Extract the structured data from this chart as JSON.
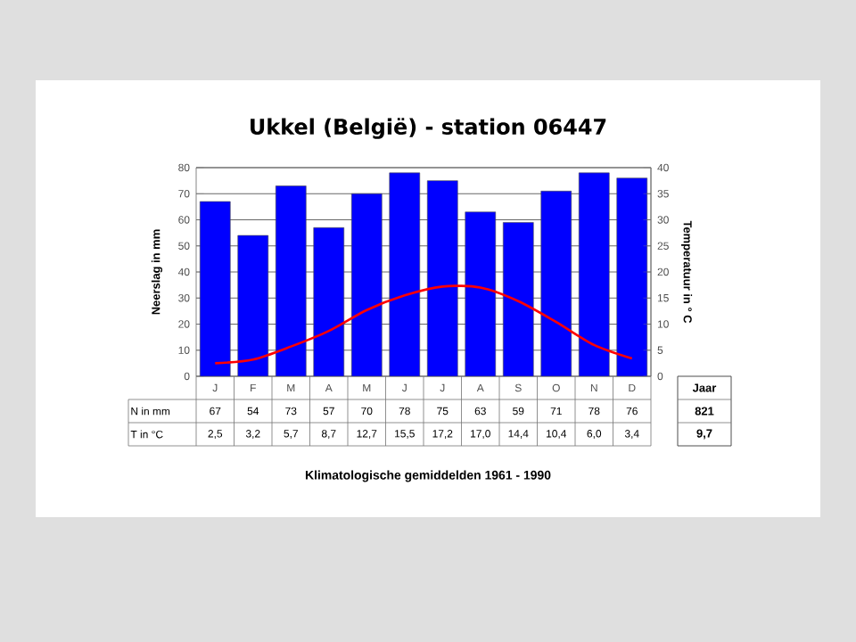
{
  "chart_data": {
    "type": "bar",
    "title": "Ukkel (België) - station 06447",
    "categories": [
      "J",
      "F",
      "M",
      "A",
      "M",
      "J",
      "J",
      "A",
      "S",
      "O",
      "N",
      "D"
    ],
    "series": [
      {
        "color": "#0000ff",
        "values": [
          67,
          54,
          73,
          57,
          70,
          78,
          75,
          63,
          59,
          71,
          78,
          76
        ],
        "value_labels": [
          "67",
          "54",
          "73",
          "57",
          "70",
          "78",
          "75",
          "63",
          "59",
          "71",
          "78",
          "76"
        ]
      },
      {
        "type": "line",
        "axis": "y2",
        "color": "#ff0000",
        "marker": "none",
        "line_style": "solid",
        "values": [
          2.5,
          3.2,
          5.7,
          8.7,
          12.7,
          15.5,
          17.2,
          17.0,
          14.4,
          10.4,
          6.0,
          3.4
        ],
        "value_labels": [
          "2,5",
          "3,2",
          "5,7",
          "8,7",
          "12,7",
          "15,5",
          "17,2",
          "17,0",
          "14,4",
          "10,4",
          "6,0",
          "3,4"
        ]
      }
    ],
    "ylabel": "Neerslag in mm",
    "y2label": "Temperatuur in ° C",
    "ylim": [
      0,
      80
    ],
    "yticks": [
      0,
      10,
      20,
      30,
      40,
      50,
      60,
      70,
      80
    ],
    "y2lim": [
      0,
      40
    ],
    "y2ticks": [
      0,
      5,
      10,
      15,
      20,
      25,
      30,
      35,
      40
    ],
    "grid": "y",
    "annotations": [
      "N in mm",
      "T in °C",
      "Jaar",
      "821",
      "9,7",
      "Klimatologische gemiddelden 1961 - 1990"
    ]
  }
}
